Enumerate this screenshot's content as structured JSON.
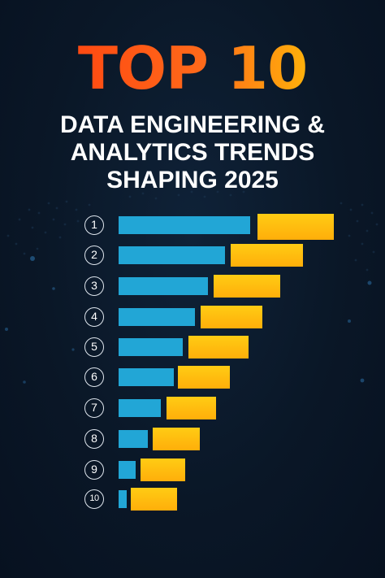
{
  "title": {
    "line1": "TOP 10",
    "line2": "DATA ENGINEERING &",
    "line3": "ANALYTICS TRENDS",
    "line4": "SHAPING 2025"
  },
  "colors": {
    "background": "#0a1727",
    "title_orange": "#ff4a12",
    "title_yellow": "#ffb10a",
    "bar_blue": "#22a6d6",
    "bar_orange": "#ffb80c",
    "badge_border": "#dfe6ee"
  },
  "rankings": [
    {
      "rank": "1",
      "blue_level": 1.0,
      "orange_level": 1.0
    },
    {
      "rank": "2",
      "blue_level": 0.81,
      "orange_level": 0.94
    },
    {
      "rank": "3",
      "blue_level": 0.68,
      "orange_level": 0.86
    },
    {
      "rank": "4",
      "blue_level": 0.58,
      "orange_level": 0.8
    },
    {
      "rank": "5",
      "blue_level": 0.49,
      "orange_level": 0.78
    },
    {
      "rank": "6",
      "blue_level": 0.42,
      "orange_level": 0.67
    },
    {
      "rank": "7",
      "blue_level": 0.32,
      "orange_level": 0.64
    },
    {
      "rank": "8",
      "blue_level": 0.22,
      "orange_level": 0.61
    },
    {
      "rank": "9",
      "blue_level": 0.13,
      "orange_level": 0.58
    },
    {
      "rank": "10",
      "blue_level": 0.06,
      "orange_level": 0.6
    }
  ]
}
